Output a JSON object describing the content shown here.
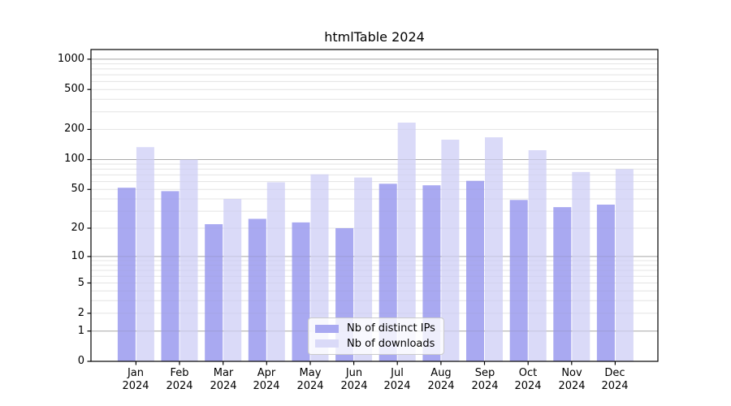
{
  "chart_data": {
    "type": "bar",
    "title": "htmlTable 2024",
    "year": "2024",
    "categories": [
      "Jan",
      "Feb",
      "Mar",
      "Apr",
      "May",
      "Jun",
      "Jul",
      "Aug",
      "Sep",
      "Oct",
      "Nov",
      "Dec"
    ],
    "series": [
      {
        "name": "Nb of distinct IPs",
        "color": "#a9a9f1",
        "values": [
          52,
          48,
          22,
          25,
          23,
          20,
          57,
          55,
          61,
          39,
          33,
          35
        ]
      },
      {
        "name": "Nb of downloads",
        "color": "#dadaf8",
        "values": [
          133,
          100,
          40,
          59,
          71,
          66,
          234,
          158,
          167,
          124,
          75,
          80
        ]
      }
    ],
    "y_axis": {
      "scale": "log10(value+1)",
      "ticks": [
        1000,
        500,
        200,
        100,
        50,
        20,
        10,
        5,
        2,
        1,
        0
      ],
      "range": [
        0,
        1250
      ]
    },
    "legend": {
      "position": "lower center"
    },
    "grid": {
      "major": true,
      "minor": true
    },
    "colors": {
      "axis": "#000000",
      "grid_major": "#b9b9b9",
      "grid_minor": "#ececec"
    }
  }
}
